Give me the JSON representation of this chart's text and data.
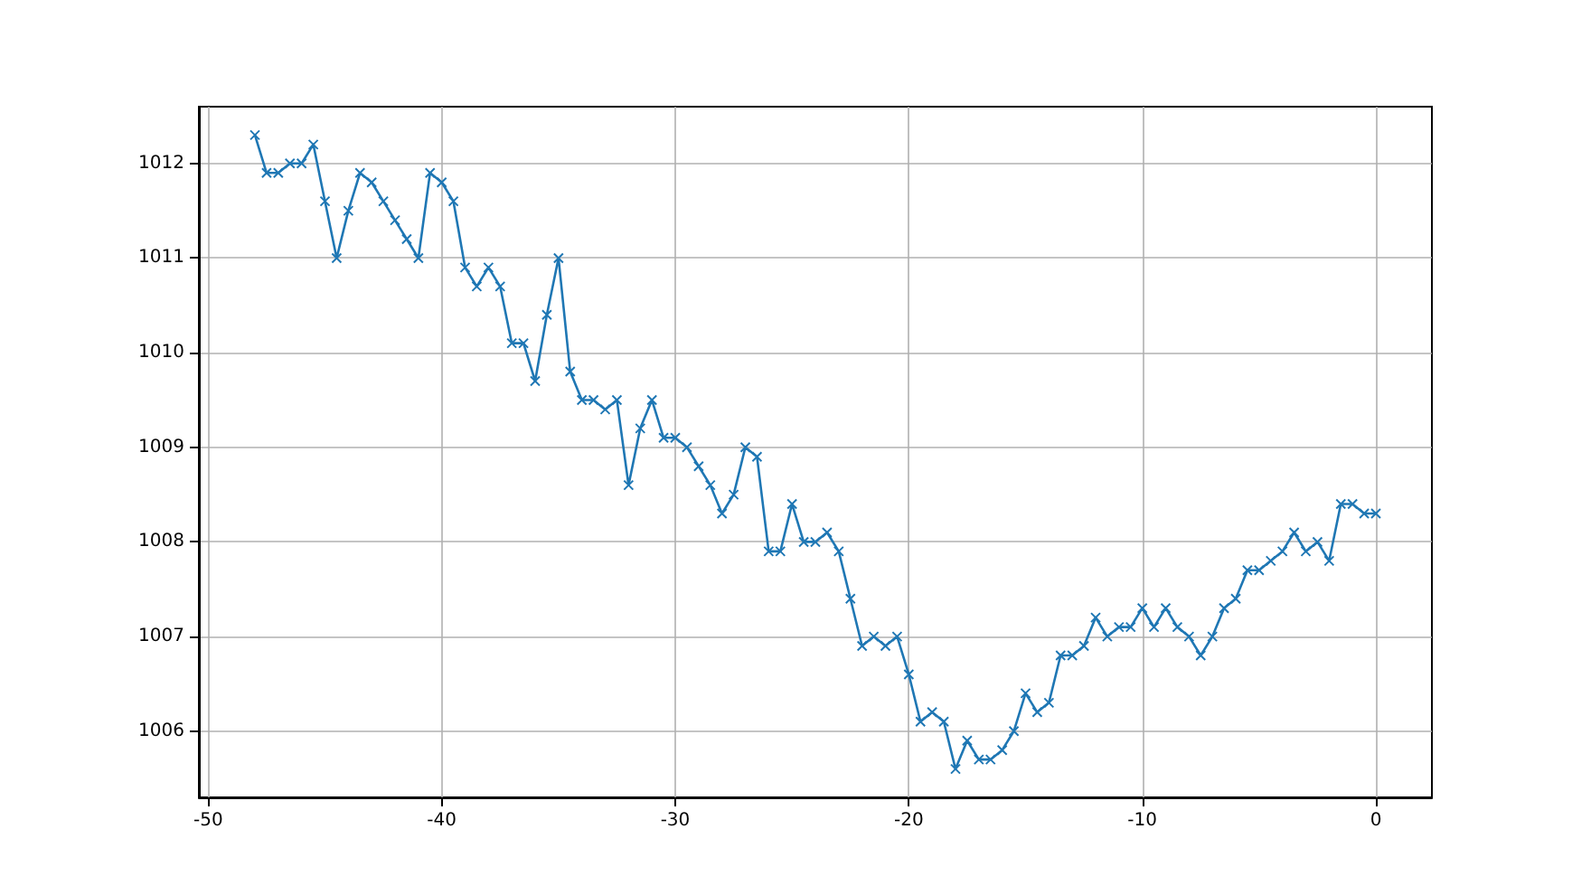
{
  "chart_data": {
    "type": "line",
    "color": "#1f77b4",
    "marker": "cross",
    "grid": true,
    "x": [
      -48,
      -47.5,
      -47,
      -46.5,
      -46,
      -45.5,
      -45,
      -44.5,
      -44,
      -43.5,
      -43,
      -42.5,
      -42,
      -41.5,
      -41,
      -40.5,
      -40,
      -39.5,
      -39,
      -38.5,
      -38,
      -37.5,
      -37,
      -36.5,
      -36,
      -35.5,
      -35,
      -34.5,
      -34,
      -33.5,
      -33,
      -32.5,
      -32,
      -31.5,
      -31,
      -30.5,
      -30,
      -29.5,
      -29,
      -28.5,
      -28,
      -27.5,
      -27,
      -26.5,
      -26,
      -25.5,
      -25,
      -24.5,
      -24,
      -23.5,
      -23,
      -22.5,
      -22,
      -21.5,
      -21,
      -20.5,
      -20,
      -19.5,
      -19,
      -18.5,
      -18,
      -17.5,
      -17,
      -16.5,
      -16,
      -15.5,
      -15,
      -14.5,
      -14,
      -13.5,
      -13,
      -12.5,
      -12,
      -11.5,
      -11,
      -10.5,
      -10,
      -9.5,
      -9,
      -8.5,
      -8,
      -7.5,
      -7,
      -6.5,
      -6,
      -5.5,
      -5,
      -4.5,
      -4,
      -3.5,
      -3,
      -2.5,
      -2,
      -1.5,
      -1,
      -0.5,
      0
    ],
    "values": [
      1012.3,
      1011.9,
      1011.9,
      1012.0,
      1012.0,
      1012.2,
      1011.6,
      1011.0,
      1011.5,
      1011.9,
      1011.8,
      1011.6,
      1011.4,
      1011.2,
      1011.0,
      1011.9,
      1011.8,
      1011.6,
      1010.9,
      1010.7,
      1010.9,
      1010.7,
      1010.1,
      1010.1,
      1009.7,
      1010.4,
      1011.0,
      1009.8,
      1009.5,
      1009.5,
      1009.4,
      1009.5,
      1008.6,
      1009.2,
      1009.5,
      1009.1,
      1009.1,
      1009.0,
      1008.8,
      1008.6,
      1008.3,
      1008.5,
      1009.0,
      1008.9,
      1007.9,
      1007.9,
      1008.4,
      1008.0,
      1008.0,
      1008.1,
      1007.9,
      1007.4,
      1006.9,
      1007.0,
      1006.9,
      1007.0,
      1006.6,
      1006.1,
      1006.2,
      1006.1,
      1005.6,
      1005.9,
      1005.7,
      1005.7,
      1005.8,
      1006.0,
      1006.4,
      1006.2,
      1006.3,
      1006.8,
      1006.8,
      1006.9,
      1007.2,
      1007.0,
      1007.1,
      1007.1,
      1007.3,
      1007.1,
      1007.3,
      1007.1,
      1007.0,
      1006.8,
      1007.0,
      1007.3,
      1007.4,
      1007.7,
      1007.7,
      1007.8,
      1007.9,
      1008.1,
      1007.9,
      1008.0,
      1007.8,
      1008.4,
      1008.4,
      1008.3,
      1008.3
    ],
    "xlim": [
      -50.4,
      2.4
    ],
    "ylim": [
      1005.3,
      1012.6
    ],
    "xticks": [
      -50,
      -40,
      -30,
      -20,
      -10,
      0
    ],
    "yticks": [
      1006,
      1007,
      1008,
      1009,
      1010,
      1011,
      1012
    ]
  }
}
